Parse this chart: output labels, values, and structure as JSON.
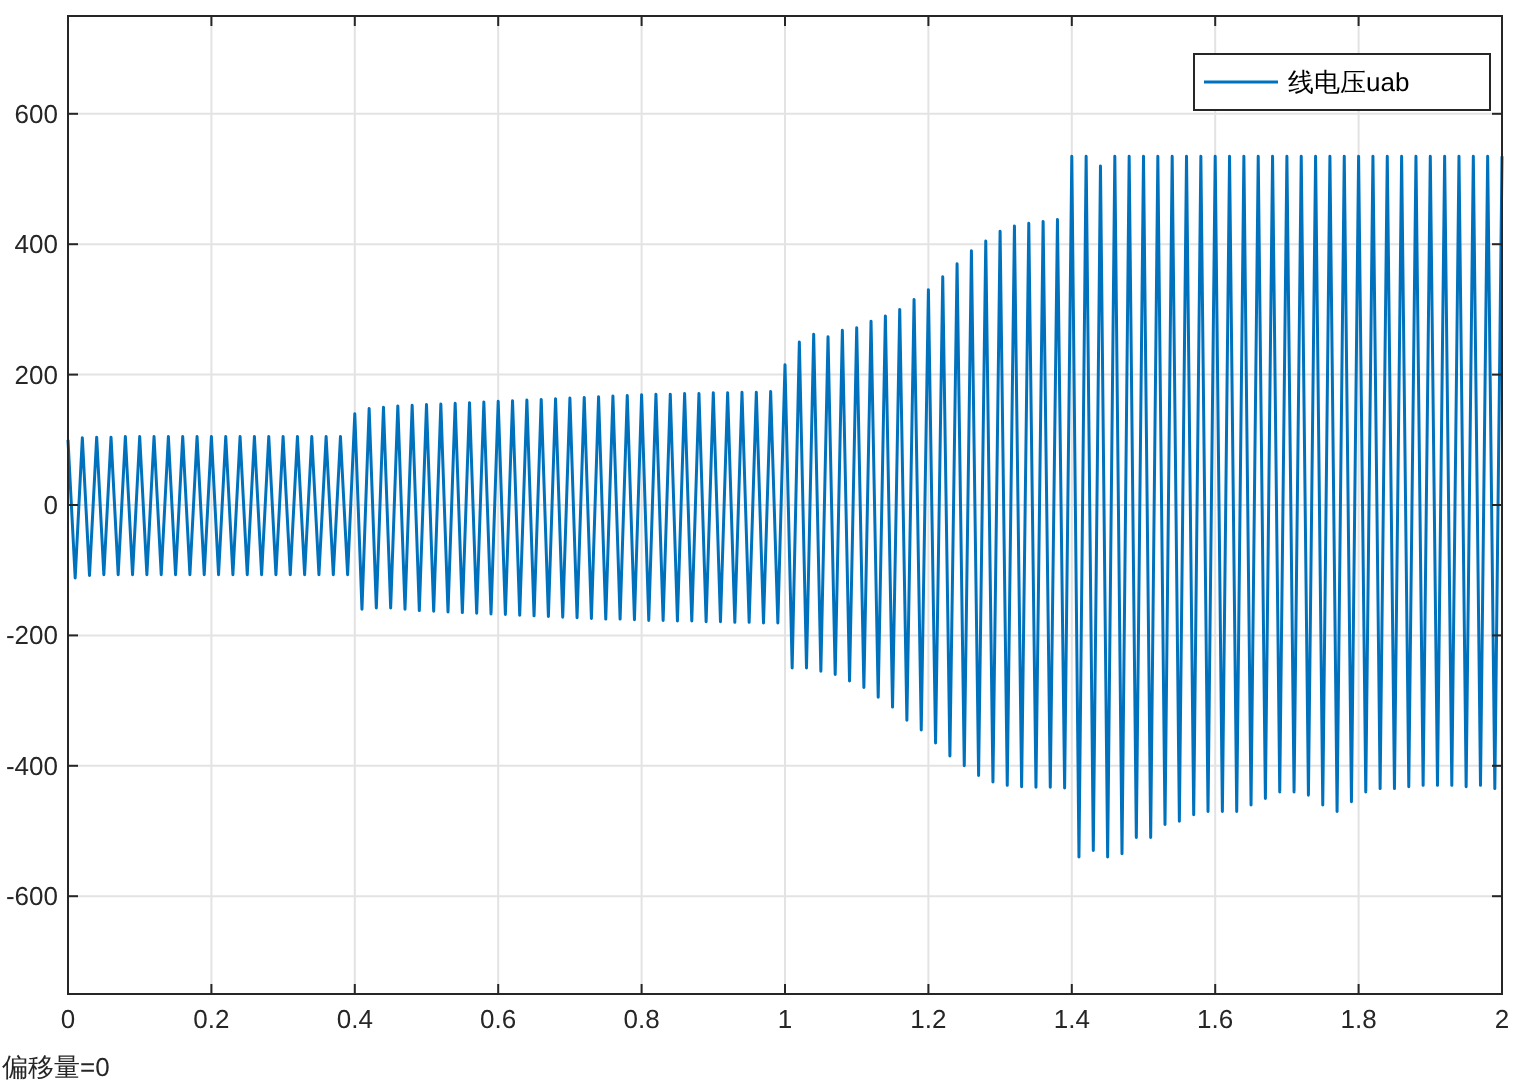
{
  "chart_data": {
    "type": "line",
    "x": [
      0,
      0.01,
      0.02,
      0.03,
      0.04,
      0.05,
      0.06,
      0.07,
      0.08,
      0.09,
      0.1,
      0.11,
      0.12,
      0.13,
      0.14,
      0.15,
      0.16,
      0.17,
      0.18,
      0.19,
      0.2,
      0.21,
      0.22,
      0.23,
      0.24,
      0.25,
      0.26,
      0.27,
      0.28,
      0.29,
      0.3,
      0.31,
      0.32,
      0.33,
      0.34,
      0.35,
      0.36,
      0.37,
      0.38,
      0.39,
      0.4,
      0.41,
      0.42,
      0.43,
      0.44,
      0.45,
      0.46,
      0.47,
      0.48,
      0.49,
      0.5,
      0.51,
      0.52,
      0.53,
      0.54,
      0.55,
      0.56,
      0.57,
      0.58,
      0.59,
      0.6,
      0.61,
      0.62,
      0.63,
      0.64,
      0.65,
      0.66,
      0.67,
      0.68,
      0.69,
      0.7,
      0.71,
      0.72,
      0.73,
      0.74,
      0.75,
      0.76,
      0.77,
      0.78,
      0.79,
      0.8,
      0.81,
      0.82,
      0.83,
      0.84,
      0.85,
      0.86,
      0.87,
      0.88,
      0.89,
      0.9,
      0.91,
      0.92,
      0.93,
      0.94,
      0.95,
      0.96,
      0.97,
      0.98,
      0.99,
      1,
      1.01,
      1.02,
      1.03,
      1.04,
      1.05,
      1.06,
      1.07,
      1.08,
      1.09,
      1.1,
      1.11,
      1.12,
      1.13,
      1.14,
      1.15,
      1.16,
      1.17,
      1.18,
      1.19,
      1.2,
      1.21,
      1.22,
      1.23,
      1.24,
      1.25,
      1.26,
      1.27,
      1.28,
      1.29,
      1.3,
      1.31,
      1.32,
      1.33,
      1.34,
      1.35,
      1.36,
      1.37,
      1.38,
      1.39,
      1.4,
      1.41,
      1.42,
      1.43,
      1.44,
      1.45,
      1.46,
      1.47,
      1.48,
      1.49,
      1.5,
      1.51,
      1.52,
      1.53,
      1.54,
      1.55,
      1.56,
      1.57,
      1.58,
      1.59,
      1.6,
      1.61,
      1.62,
      1.63,
      1.64,
      1.65,
      1.66,
      1.67,
      1.68,
      1.69,
      1.7,
      1.71,
      1.72,
      1.73,
      1.74,
      1.75,
      1.76,
      1.77,
      1.78,
      1.79,
      1.8,
      1.81,
      1.82,
      1.83,
      1.84,
      1.85,
      1.86,
      1.87,
      1.88,
      1.89,
      1.9,
      1.91,
      1.92,
      1.93,
      1.94,
      1.95,
      1.96,
      1.97,
      1.98,
      1.99,
      2
    ],
    "series": [
      {
        "name": "线电压uab",
        "color": "#0072bd",
        "values": [
          100,
          -112,
          103,
          -108,
          104,
          -107,
          104,
          -107,
          105,
          -107,
          105,
          -107,
          105,
          -107,
          105,
          -107,
          105,
          -107,
          105,
          -107,
          105,
          -107,
          105,
          -107,
          105,
          -107,
          105,
          -107,
          105,
          -107,
          105,
          -107,
          105,
          -107,
          105,
          -107,
          105,
          -107,
          105,
          -107,
          140,
          -160,
          148,
          -158,
          150,
          -158,
          152,
          -160,
          153,
          -162,
          154,
          -163,
          155,
          -164,
          156,
          -165,
          157,
          -166,
          158,
          -167,
          159,
          -168,
          160,
          -169,
          161,
          -170,
          162,
          -171,
          163,
          -172,
          164,
          -173,
          165,
          -174,
          166,
          -175,
          167,
          -175,
          168,
          -176,
          169,
          -177,
          170,
          -177,
          170,
          -178,
          171,
          -178,
          171,
          -179,
          172,
          -179,
          172,
          -180,
          173,
          -180,
          173,
          -181,
          174,
          -181,
          215,
          -250,
          250,
          -250,
          262,
          -255,
          258,
          -260,
          268,
          -270,
          272,
          -280,
          282,
          -295,
          290,
          -310,
          300,
          -330,
          315,
          -345,
          330,
          -365,
          350,
          -385,
          370,
          -400,
          390,
          -415,
          405,
          -425,
          420,
          -430,
          428,
          -432,
          432,
          -433,
          435,
          -433,
          438,
          -434,
          535,
          -540,
          535,
          -530,
          520,
          -540,
          535,
          -535,
          535,
          -510,
          535,
          -510,
          535,
          -490,
          535,
          -485,
          535,
          -475,
          535,
          -470,
          535,
          -470,
          535,
          -470,
          535,
          -460,
          535,
          -450,
          535,
          -440,
          535,
          -440,
          535,
          -445,
          535,
          -460,
          535,
          -470,
          535,
          -455,
          535,
          -440,
          535,
          -435,
          535,
          -435,
          535,
          -432,
          535,
          -430,
          535,
          -430,
          535,
          -430,
          535,
          -432,
          535,
          -430,
          535,
          -435,
          535
        ]
      }
    ],
    "xlim": [
      0,
      2
    ],
    "ylim": [
      -750,
      750
    ],
    "xticks": [
      0,
      0.2,
      0.4,
      0.6,
      0.8,
      1,
      1.2,
      1.4,
      1.6,
      1.8,
      2
    ],
    "yticks": [
      -600,
      -400,
      -200,
      0,
      200,
      400,
      600
    ],
    "grid": true,
    "legend": "top right",
    "annotations": [
      "偏移量=0"
    ]
  }
}
